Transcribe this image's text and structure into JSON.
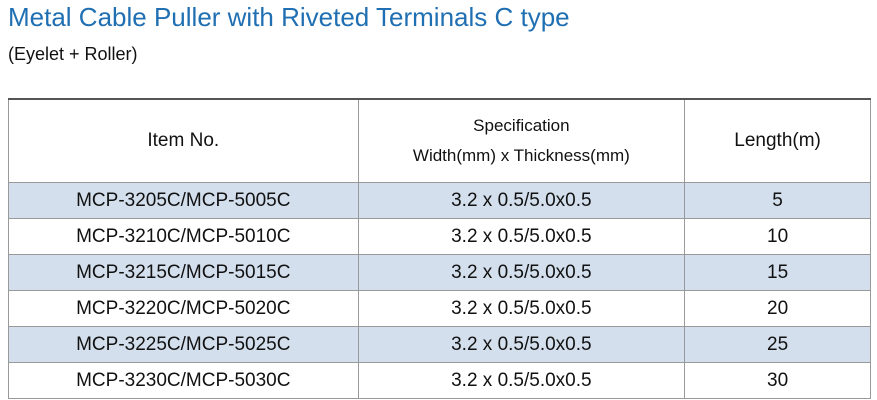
{
  "header": {
    "title": "Metal Cable Puller with Riveted Terminals C type",
    "subtitle": "(Eyelet + Roller)"
  },
  "table": {
    "columns": [
      [
        "Item No."
      ],
      [
        "Specification",
        "Width(mm) x Thickness(mm)"
      ],
      [
        "Length(m)"
      ]
    ],
    "rows": [
      [
        "MCP-3205C/MCP-5005C",
        "3.2 x 0.5/5.0x0.5",
        5
      ],
      [
        "MCP-3210C/MCP-5010C",
        "3.2 x 0.5/5.0x0.5",
        10
      ],
      [
        "MCP-3215C/MCP-5015C",
        "3.2 x 0.5/5.0x0.5",
        15
      ],
      [
        "MCP-3220C/MCP-5020C",
        "3.2 x 0.5/5.0x0.5",
        20
      ],
      [
        "MCP-3225C/MCP-5025C",
        "3.2 x 0.5/5.0x0.5",
        25
      ],
      [
        "MCP-3230C/MCP-5030C",
        "3.2 x 0.5/5.0x0.5",
        30
      ]
    ]
  }
}
